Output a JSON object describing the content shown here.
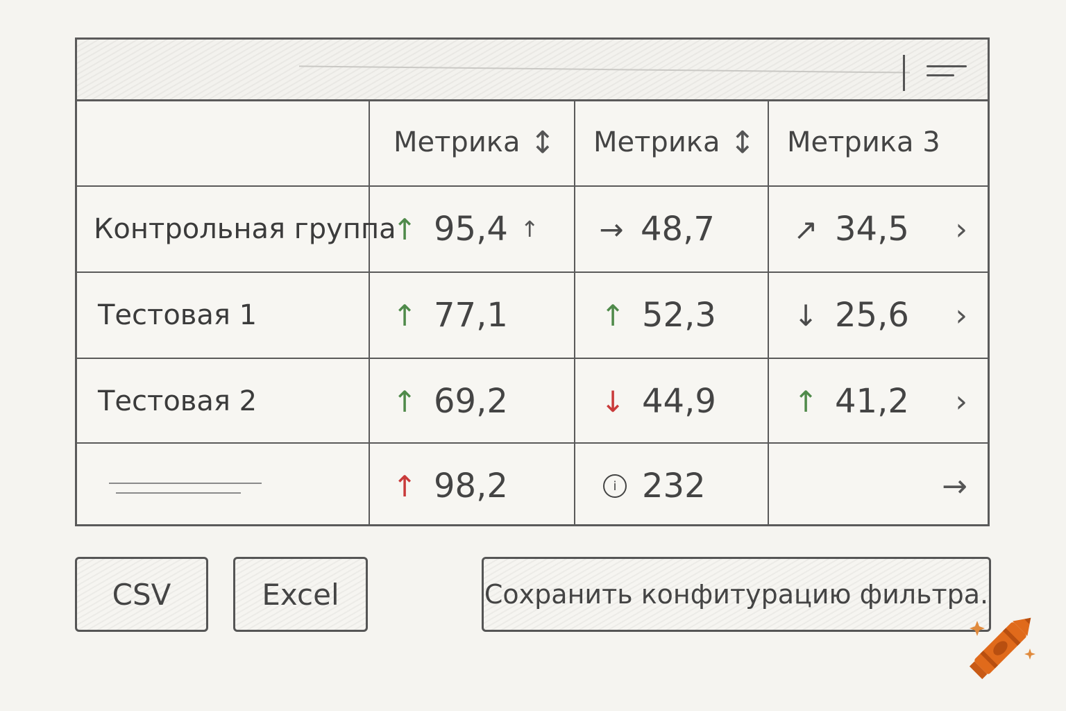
{
  "table": {
    "headers": [
      {
        "label": "Метрика",
        "sort": "↕"
      },
      {
        "label": "Метрика",
        "sort": "↕"
      },
      {
        "label": "Метрика 3"
      }
    ],
    "rows": [
      {
        "label": "Контрольная группа",
        "cells": [
          {
            "value": "95,4",
            "trend": "up",
            "arrow": "↑",
            "extra": "↑"
          },
          {
            "value": "48,7",
            "trend": "flat",
            "arrow": "→"
          },
          {
            "value": "34,5",
            "trend": "up-right",
            "arrow": "↗"
          }
        ]
      },
      {
        "label": "Тестовая 1",
        "cells": [
          {
            "value": "77,1",
            "trend": "up",
            "arrow": "↑"
          },
          {
            "value": "52,3",
            "trend": "up",
            "arrow": "↑"
          },
          {
            "value": "25,6",
            "trend": "down",
            "arrow": "↓"
          }
        ]
      },
      {
        "label": "Тестовая 2",
        "cells": [
          {
            "value": "69,2",
            "trend": "up",
            "arrow": "↑"
          },
          {
            "value": "44,9",
            "trend": "down",
            "arrow": "↓"
          },
          {
            "value": "41,2",
            "trend": "up",
            "arrow": "↑"
          }
        ]
      },
      {
        "label": "",
        "cells": [
          {
            "value": "98,2",
            "trend": "up",
            "arrow": "↑"
          },
          {
            "value": "232",
            "icon": "info-icon"
          },
          {
            "value": "",
            "arrow": "→"
          }
        ]
      }
    ],
    "row_action_glyph": "›",
    "info_glyph": "i"
  },
  "buttons": {
    "csv": "CSV",
    "excel": "Excel",
    "save_filter": "Сохранить конфитурацию фильтра."
  },
  "colors": {
    "up": "#4f8a4a",
    "down": "#c93a3a",
    "crayon": "#e06a1b"
  }
}
